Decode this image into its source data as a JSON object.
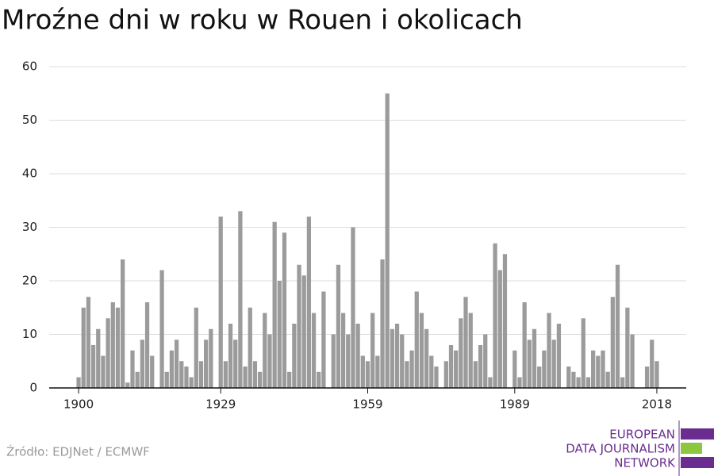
{
  "chart_data": {
    "type": "bar",
    "title": "Mroźne dni w roku w Rouen i okolicach",
    "x": [
      1900,
      1901,
      1902,
      1903,
      1904,
      1905,
      1906,
      1907,
      1908,
      1909,
      1910,
      1911,
      1912,
      1913,
      1914,
      1915,
      1916,
      1917,
      1918,
      1919,
      1920,
      1921,
      1922,
      1923,
      1924,
      1925,
      1926,
      1927,
      1928,
      1929,
      1930,
      1931,
      1932,
      1933,
      1934,
      1935,
      1936,
      1937,
      1938,
      1939,
      1940,
      1941,
      1942,
      1943,
      1944,
      1945,
      1946,
      1947,
      1948,
      1949,
      1950,
      1951,
      1952,
      1953,
      1954,
      1955,
      1956,
      1957,
      1958,
      1959,
      1960,
      1961,
      1962,
      1963,
      1964,
      1965,
      1966,
      1967,
      1968,
      1969,
      1970,
      1971,
      1972,
      1973,
      1974,
      1975,
      1976,
      1977,
      1978,
      1979,
      1980,
      1981,
      1982,
      1983,
      1984,
      1985,
      1986,
      1987,
      1988,
      1989,
      1990,
      1991,
      1992,
      1993,
      1994,
      1995,
      1996,
      1997,
      1998,
      1999,
      2000,
      2001,
      2002,
      2003,
      2004,
      2005,
      2006,
      2007,
      2008,
      2009,
      2010,
      2011,
      2012,
      2013,
      2014,
      2015,
      2016,
      2017,
      2018
    ],
    "values": [
      2,
      15,
      17,
      8,
      11,
      6,
      13,
      16,
      15,
      24,
      1,
      7,
      3,
      9,
      16,
      6,
      0,
      22,
      3,
      7,
      9,
      5,
      4,
      2,
      15,
      5,
      9,
      11,
      0,
      32,
      5,
      12,
      9,
      33,
      4,
      15,
      5,
      3,
      14,
      10,
      31,
      20,
      29,
      3,
      12,
      23,
      21,
      32,
      14,
      3,
      18,
      0,
      10,
      23,
      14,
      10,
      30,
      12,
      6,
      5,
      14,
      6,
      24,
      55,
      11,
      12,
      10,
      5,
      7,
      18,
      14,
      11,
      6,
      4,
      0,
      5,
      8,
      7,
      13,
      17,
      14,
      5,
      8,
      10,
      2,
      27,
      22,
      25,
      0,
      7,
      2,
      16,
      9,
      11,
      4,
      7,
      14,
      9,
      12,
      0,
      4,
      3,
      2,
      13,
      2,
      7,
      6,
      7,
      3,
      17,
      23,
      2,
      15,
      10,
      0,
      0,
      4,
      9,
      5
    ],
    "color": "#9b9b9b",
    "xlim": [
      1894,
      2024
    ],
    "xticks": [
      1900,
      1929,
      1959,
      1989,
      2018
    ],
    "ylim": [
      0,
      60
    ],
    "yticks": [
      0,
      10,
      20,
      30,
      40,
      50,
      60
    ],
    "grid": true,
    "source": "Źródło: EDJNet / ECMWF",
    "logo": [
      "EUROPEAN",
      "DATA JOURNALISM",
      "NETWORK"
    ]
  }
}
